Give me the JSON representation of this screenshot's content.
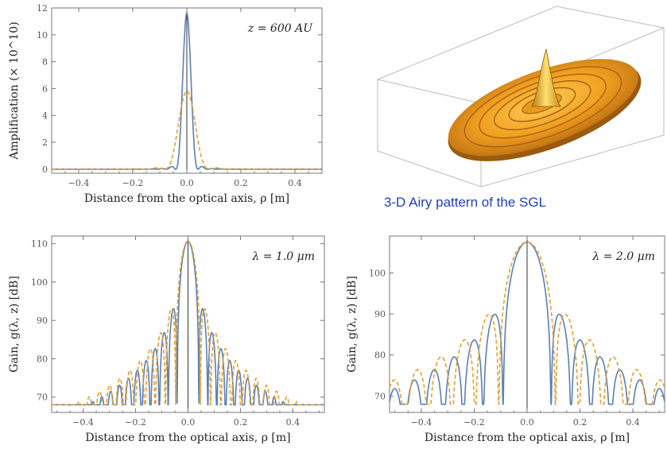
{
  "caption": "3-D Airy pattern of the SGL",
  "colors": {
    "solid": "#5a7fb5",
    "dashed": "#e0a030",
    "axis": "#777777",
    "text": "#222222"
  },
  "chart_data": [
    {
      "id": "amplification",
      "type": "line",
      "annotation": "z = 600 AU",
      "xlabel": "Distance from the optical axis,  ρ [m]",
      "ylabel": "Amplification (× 10^10)",
      "xlim": [
        -0.5,
        0.5
      ],
      "ylim": [
        -0.3,
        12
      ],
      "xticks": [
        -0.4,
        -0.2,
        0.0,
        0.2,
        0.4
      ],
      "xtick_labels": [
        "−0.4",
        "−0.2",
        "0.0",
        "0.2",
        "0.4"
      ],
      "yticks": [
        0,
        2,
        4,
        6,
        8,
        10,
        12
      ],
      "ytick_labels": [
        "0",
        "2",
        "4",
        "6",
        "8",
        "10",
        "12"
      ],
      "series": [
        {
          "style": "solid",
          "color": "#5a7fb5",
          "peak": 11.6,
          "first_zero": 0.0412,
          "kind": "amplification"
        },
        {
          "style": "dashed",
          "color": "#e0a030",
          "peak": 5.8,
          "first_zero": 0.0824,
          "kind": "amplification"
        }
      ]
    },
    {
      "id": "gain-1um",
      "type": "line",
      "annotation": "λ = 1.0 μm",
      "xlabel": "Distance from the optical axis,  ρ [m]",
      "ylabel": "Gain,  g(λ, z)  [dB]",
      "xlim": [
        -0.52,
        0.52
      ],
      "ylim": [
        66,
        112
      ],
      "xticks": [
        -0.4,
        -0.2,
        0.0,
        0.2,
        0.4
      ],
      "xtick_labels": [
        "−0.4",
        "−0.2",
        "0.0",
        "0.2",
        "0.4"
      ],
      "yticks": [
        70,
        80,
        90,
        100,
        110
      ],
      "ytick_labels": [
        "70",
        "80",
        "90",
        "100",
        "110"
      ],
      "series": [
        {
          "style": "solid",
          "color": "#5a7fb5",
          "peak": 110.6,
          "first_zero": 0.0412,
          "floor": 68,
          "kind": "gain"
        },
        {
          "style": "dashed",
          "color": "#e0a030",
          "peak": 110.6,
          "first_zero": 0.0472,
          "floor": 68,
          "kind": "gain"
        }
      ]
    },
    {
      "id": "gain-2um",
      "type": "line",
      "annotation": "λ = 2.0 μm",
      "xlabel": "Distance from the optical axis,  ρ [m]",
      "ylabel": "Gain,  g(λ, z)  [dB]",
      "xlim": [
        -0.52,
        0.52
      ],
      "ylim": [
        66,
        109
      ],
      "xticks": [
        -0.4,
        -0.2,
        0.0,
        0.2,
        0.4
      ],
      "xtick_labels": [
        "−0.4",
        "−0.2",
        "0.0",
        "0.2",
        "0.4"
      ],
      "yticks": [
        70,
        80,
        90,
        100
      ],
      "ytick_labels": [
        "70",
        "80",
        "90",
        "100"
      ],
      "series": [
        {
          "style": "solid",
          "color": "#5a7fb5",
          "peak": 107.5,
          "first_zero": 0.0908,
          "floor": 68,
          "kind": "gain"
        },
        {
          "style": "dashed",
          "color": "#e0a030",
          "peak": 107.5,
          "first_zero": 0.1071,
          "floor": 68,
          "kind": "gain"
        }
      ]
    }
  ]
}
